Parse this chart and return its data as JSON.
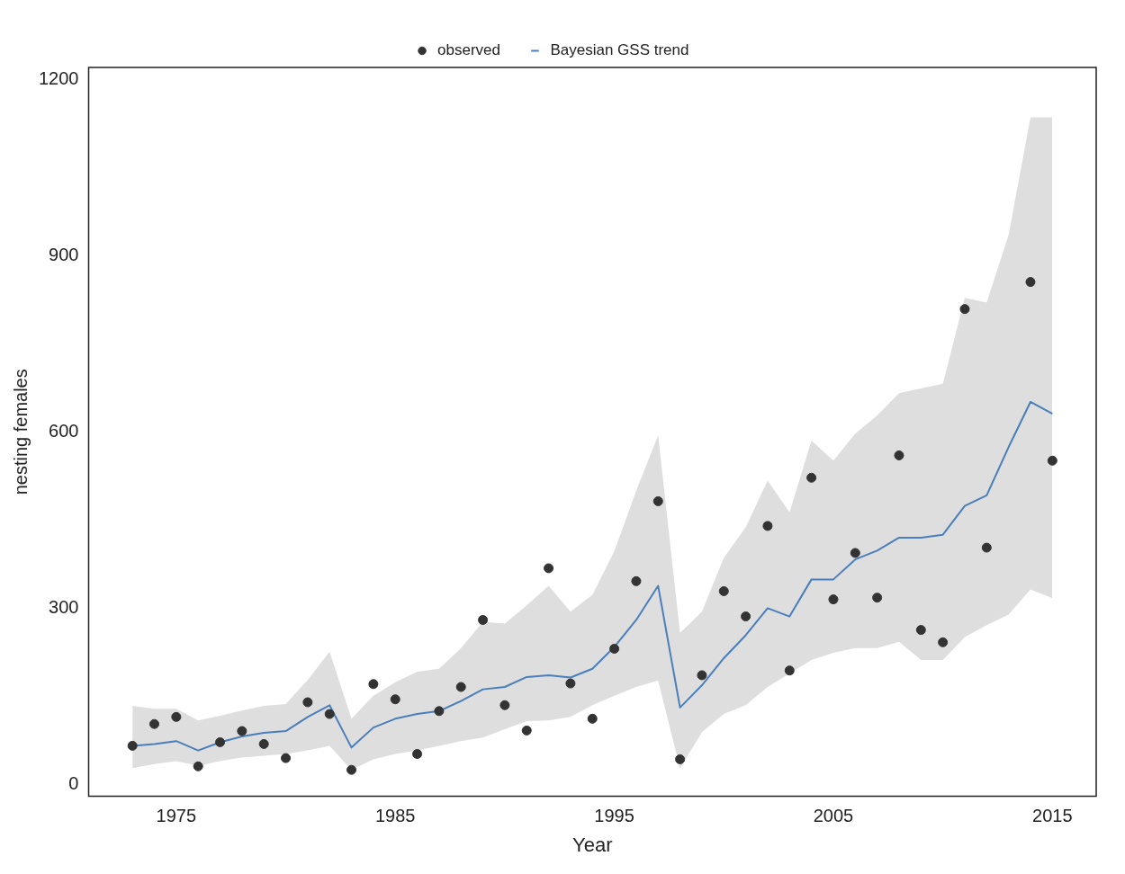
{
  "chart_data": {
    "type": "scatter",
    "xlabel": "Year",
    "ylabel": "nesting females",
    "xlim": [
      1971,
      2017
    ],
    "xticks": [
      1975,
      1985,
      1995,
      2005,
      2015
    ],
    "ylim": [
      -20,
      1220
    ],
    "yticks": [
      0,
      300,
      600,
      900,
      1200
    ],
    "grid": false,
    "legend": "top",
    "series": [
      {
        "name": "observed",
        "marker": "circle",
        "color": "#333333",
        "x": [
          1973,
          1974,
          1975,
          1976,
          1977,
          1978,
          1979,
          1980,
          1981,
          1982,
          1983,
          1984,
          1985,
          1986,
          1987,
          1988,
          1989,
          1990,
          1991,
          1992,
          1993,
          1994,
          1995,
          1996,
          1997,
          1998,
          1999,
          2000,
          2001,
          2002,
          2003,
          2004,
          2005,
          2006,
          2007,
          2008,
          2009,
          2010,
          2011,
          2012,
          2014,
          2015
        ],
        "values": [
          66,
          103,
          115,
          31,
          72,
          91,
          69,
          45,
          140,
          120,
          25,
          171,
          145,
          52,
          125,
          166,
          280,
          135,
          92,
          368,
          172,
          112,
          231,
          346,
          482,
          43,
          186,
          329,
          286,
          440,
          194,
          522,
          315,
          394,
          318,
          560,
          263,
          242,
          809,
          403,
          855,
          551
        ]
      },
      {
        "name": "Bayesian GSS trend",
        "type": "line",
        "marker": "none",
        "line_style": "solid",
        "color": "#4a7ebb",
        "x": [
          1973,
          1974,
          1975,
          1976,
          1977,
          1978,
          1979,
          1980,
          1981,
          1982,
          1983,
          1984,
          1985,
          1986,
          1987,
          1988,
          1989,
          1990,
          1991,
          1992,
          1993,
          1994,
          1995,
          1996,
          1997,
          1998,
          1999,
          2000,
          2001,
          2002,
          2003,
          2004,
          2005,
          2006,
          2007,
          2008,
          2009,
          2010,
          2011,
          2012,
          2013,
          2014,
          2015
        ],
        "values": [
          66,
          69,
          74,
          58,
          72,
          82,
          88,
          91,
          115,
          135,
          63,
          97,
          112,
          120,
          125,
          142,
          162,
          166,
          183,
          186,
          182,
          197,
          234,
          280,
          338,
          131,
          169,
          215,
          254,
          300,
          286,
          349,
          349,
          383,
          398,
          420,
          420,
          425,
          474,
          492,
          574,
          651,
          631
        ],
        "lower": [
          28,
          35,
          40,
          32,
          40,
          46,
          49,
          52,
          58,
          66,
          25,
          43,
          52,
          58,
          66,
          74,
          80,
          94,
          108,
          109,
          115,
          135,
          151,
          166,
          177,
          28,
          89,
          120,
          135,
          166,
          189,
          212,
          224,
          232,
          232,
          243,
          212,
          212,
          251,
          271,
          289,
          332,
          317
        ],
        "upper": [
          134,
          129,
          129,
          109,
          117,
          126,
          134,
          137,
          178,
          226,
          112,
          151,
          174,
          192,
          197,
          232,
          277,
          274,
          305,
          338,
          294,
          323,
          397,
          500,
          594,
          258,
          294,
          386,
          438,
          517,
          463,
          585,
          551,
          597,
          628,
          666,
          674,
          682,
          828,
          820,
          935,
          1135,
          1135
        ]
      }
    ]
  }
}
